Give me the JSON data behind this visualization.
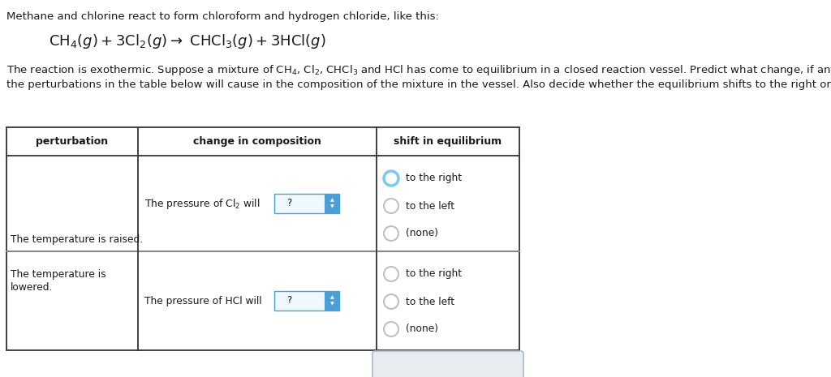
{
  "bg_color": "#ffffff",
  "text_color": "#000000",
  "dark_text": "#1a1a1a",
  "header_top_text": "Methane and chlorine react to form chloroform and hydrogen chloride, like this:",
  "paragraph_line1": "The reaction is exothermic. Suppose a mixture of CH",
  "paragraph_line2": "the perturbations in the table below will cause in the composition of the mixture in the vessel. Also decide whether the equilibrium shifts to the right or left.",
  "col_headers": [
    "perturbation",
    "change in composition",
    "shift in equilibrium"
  ],
  "row1_col1": "The temperature is raised.",
  "row2_col1_line1": "The temperature is",
  "row2_col1_line2": "lowered.",
  "radio_options": [
    "to the right",
    "to the left",
    "(none)"
  ],
  "selected_circle_color": "#7ec8f0",
  "unselected_circle_color": "#c0c0c0",
  "table_border_color": "#333333",
  "row_divider_color": "#888888",
  "dropdown_blue": "#4a9fd4",
  "dropdown_bg": "#f0f8ff",
  "button_bar_bg": "#e8ecf0",
  "button_bar_border": "#b0b8c0",
  "button_icon_color": "#5a7a8a",
  "eq_color": "#1a1a1a"
}
